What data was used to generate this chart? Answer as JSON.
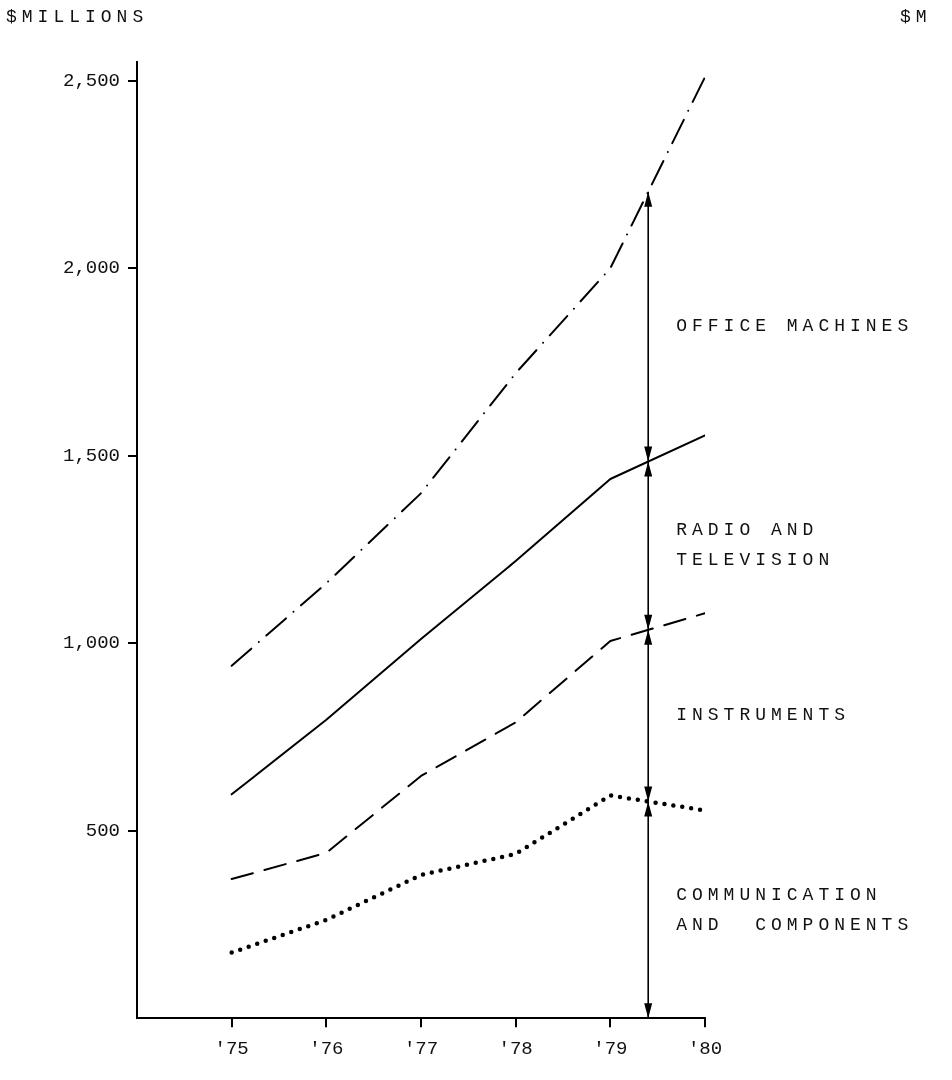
{
  "chart_data": {
    "type": "line",
    "ylabel": "$MILLIONS",
    "x": [
      1975,
      1976,
      1977,
      1978,
      1979,
      1980
    ],
    "xlim": [
      1974,
      1980
    ],
    "xticks": [
      {
        "value": 1975,
        "label": "'75"
      },
      {
        "value": 1976,
        "label": "'76"
      },
      {
        "value": 1977,
        "label": "'77"
      },
      {
        "value": 1978,
        "label": "'78"
      },
      {
        "value": 1979,
        "label": "'79"
      },
      {
        "value": 1980,
        "label": "'80"
      }
    ],
    "ylim": [
      0,
      2550
    ],
    "yticks": [
      {
        "value": 500,
        "label": "500"
      },
      {
        "value": 1000,
        "label": "1,000"
      },
      {
        "value": 1500,
        "label": "1,500"
      },
      {
        "value": 2000,
        "label": "2,000"
      },
      {
        "value": 2500,
        "label": "2,500"
      }
    ],
    "series": [
      {
        "color": "#000000",
        "line_style": "dashdot",
        "values": [
          940,
          1160,
          1400,
          1720,
          2000,
          2510
        ]
      },
      {
        "color": "#000000",
        "line_style": "solid",
        "values": [
          597,
          796,
          1011,
          1219,
          1438,
          1554
        ]
      },
      {
        "color": "#000000",
        "line_style": "dashed",
        "values": [
          371,
          441,
          646,
          789,
          1006,
          1080
        ]
      },
      {
        "color": "#000000",
        "line_style": "dotted",
        "values": [
          175,
          262,
          382,
          438,
          594,
          554
        ]
      }
    ],
    "annotations": [
      "OFFICE MACHINES",
      "RADIO AND\nTELEVISION",
      "INSTRUMENTS",
      "COMMUNICATION\nAND  COMPONENTS",
      "$M"
    ],
    "grid": false,
    "legend": false,
    "marker": "none"
  }
}
